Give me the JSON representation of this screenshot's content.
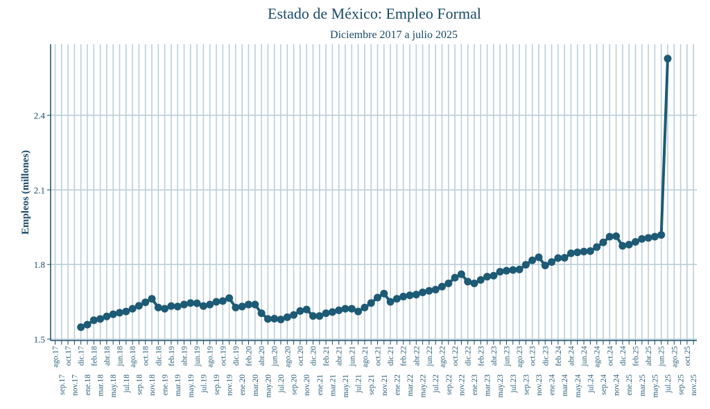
{
  "chart_data": {
    "type": "line",
    "title": "Estado de México: Empleo Formal",
    "subtitle": "Diciembre 2017 a julio 2025",
    "xlabel": "",
    "ylabel": "Empleos (millones)",
    "ylim": [
      1.5,
      2.68
    ],
    "yticks": [
      "1.5",
      "1.8",
      "2.1",
      "2.4"
    ],
    "grid": true,
    "colors": {
      "line": "#1d5a75",
      "grid": "#b9ced9",
      "text": "#1a4a66"
    },
    "xtick_labels": [
      "ago.17",
      "sep.17",
      "oct.17",
      "nov.17",
      "dic.17",
      "ene.18",
      "feb.18",
      "mar.18",
      "abr.18",
      "may.18",
      "jun.18",
      "jul.18",
      "ago.18",
      "sep.18",
      "oct.18",
      "nov.18",
      "dic.18",
      "ene.19",
      "feb.19",
      "mar.19",
      "abr.19",
      "may.19",
      "jun.19",
      "jul.19",
      "ago.19",
      "sep.19",
      "oct.19",
      "nov.19",
      "dic.19",
      "ene.20",
      "feb.20",
      "mar.20",
      "abr.20",
      "may.20",
      "jun.20",
      "jul.20",
      "ago.20",
      "sep.20",
      "oct.20",
      "nov.20",
      "dic.20",
      "ene.21",
      "feb.21",
      "mar.21",
      "abr.21",
      "may.21",
      "jun.21",
      "jul.21",
      "ago.21",
      "sep.21",
      "oct.21",
      "nov.21",
      "dic.21",
      "ene.22",
      "feb.22",
      "mar.22",
      "abr.22",
      "may.22",
      "jun.22",
      "jul.22",
      "ago.22",
      "sep.22",
      "oct.22",
      "nov.22",
      "dic.22",
      "ene.23",
      "feb.23",
      "mar.23",
      "abr.23",
      "may.23",
      "jun.23",
      "jul.23",
      "ago.23",
      "sep.23",
      "oct.23",
      "nov.23",
      "dic.23",
      "ene.24",
      "feb.24",
      "mar.24",
      "abr.24",
      "may.24",
      "jun.24",
      "jul.24",
      "ago.24",
      "sep.24",
      "oct.24",
      "nov.24",
      "dic.24",
      "ene.25",
      "feb.25",
      "mar.25",
      "abr.25",
      "may.25",
      "jun.25",
      "jul.25",
      "ago.25",
      "sep.25",
      "oct.25",
      "nov.25"
    ],
    "x_start": "dic.17",
    "values": [
      1.548,
      1.558,
      1.576,
      1.581,
      1.591,
      1.6,
      1.606,
      1.611,
      1.622,
      1.634,
      1.648,
      1.662,
      1.627,
      1.622,
      1.633,
      1.631,
      1.639,
      1.645,
      1.644,
      1.633,
      1.639,
      1.65,
      1.653,
      1.665,
      1.627,
      1.631,
      1.639,
      1.639,
      1.604,
      1.581,
      1.582,
      1.579,
      1.588,
      1.597,
      1.613,
      1.619,
      1.593,
      1.593,
      1.604,
      1.609,
      1.616,
      1.622,
      1.622,
      1.611,
      1.627,
      1.645,
      1.667,
      1.683,
      1.65,
      1.662,
      1.671,
      1.676,
      1.679,
      1.688,
      1.694,
      1.699,
      1.711,
      1.724,
      1.747,
      1.761,
      1.731,
      1.724,
      1.738,
      1.751,
      1.755,
      1.771,
      1.775,
      1.778,
      1.78,
      1.799,
      1.817,
      1.829,
      1.796,
      1.81,
      1.826,
      1.827,
      1.845,
      1.849,
      1.852,
      1.854,
      1.87,
      1.889,
      1.912,
      1.914,
      1.875,
      1.88,
      1.891,
      1.903,
      1.907,
      1.912,
      1.919,
      2.628
    ]
  }
}
